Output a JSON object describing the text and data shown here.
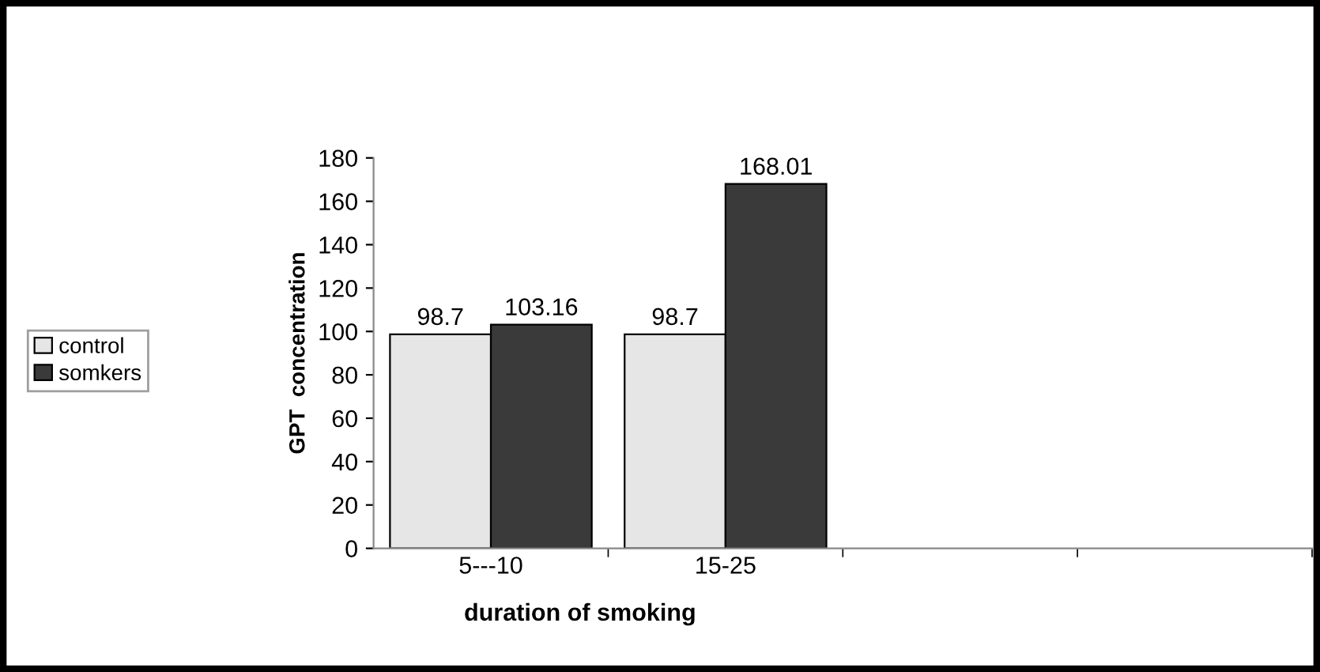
{
  "chart_data": {
    "type": "bar",
    "xlabel": "duration of smoking",
    "ylabel": "GPT  concentration",
    "categories": [
      "5---10",
      "15-25",
      null,
      null
    ],
    "series": [
      {
        "name": "control",
        "color": "#e6e6e6",
        "values": [
          98.7,
          98.7,
          null,
          null
        ]
      },
      {
        "name": "somkers",
        "color": "#3a3a3a",
        "values": [
          103.16,
          168.01,
          null,
          null
        ]
      }
    ],
    "ylim": [
      0,
      180
    ],
    "yticks": [
      0,
      20,
      40,
      60,
      80,
      100,
      120,
      140,
      160,
      180
    ],
    "data_labels": true,
    "legend": "left",
    "grid": false
  }
}
